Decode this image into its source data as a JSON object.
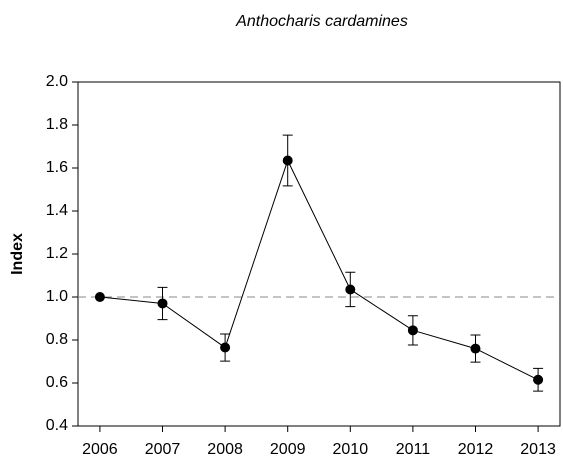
{
  "chart_data": {
    "type": "line",
    "title": "Anthocharis cardamines",
    "ylabel": "Index",
    "x": [
      2006,
      2007,
      2008,
      2009,
      2010,
      2011,
      2012,
      2013
    ],
    "values": [
      1.0,
      0.97,
      0.765,
      1.635,
      1.035,
      0.845,
      0.76,
      0.615
    ],
    "errors": [
      0,
      0.075,
      0.063,
      0.118,
      0.08,
      0.068,
      0.063,
      0.053
    ],
    "color": "#000000",
    "reference_line": 1.0,
    "xlim": [
      2005.65,
      2013.35
    ],
    "xticks": [
      2006,
      2007,
      2008,
      2009,
      2010,
      2011,
      2012,
      2013
    ],
    "ylim": [
      0.4,
      2.0
    ],
    "yticks": [
      0.4,
      0.6,
      0.8,
      {
        "value": 1.0,
        "label": "1.0"
      },
      1.2,
      1.4,
      1.6,
      1.8,
      {
        "value": 2.0,
        "label": "2.0"
      }
    ]
  }
}
